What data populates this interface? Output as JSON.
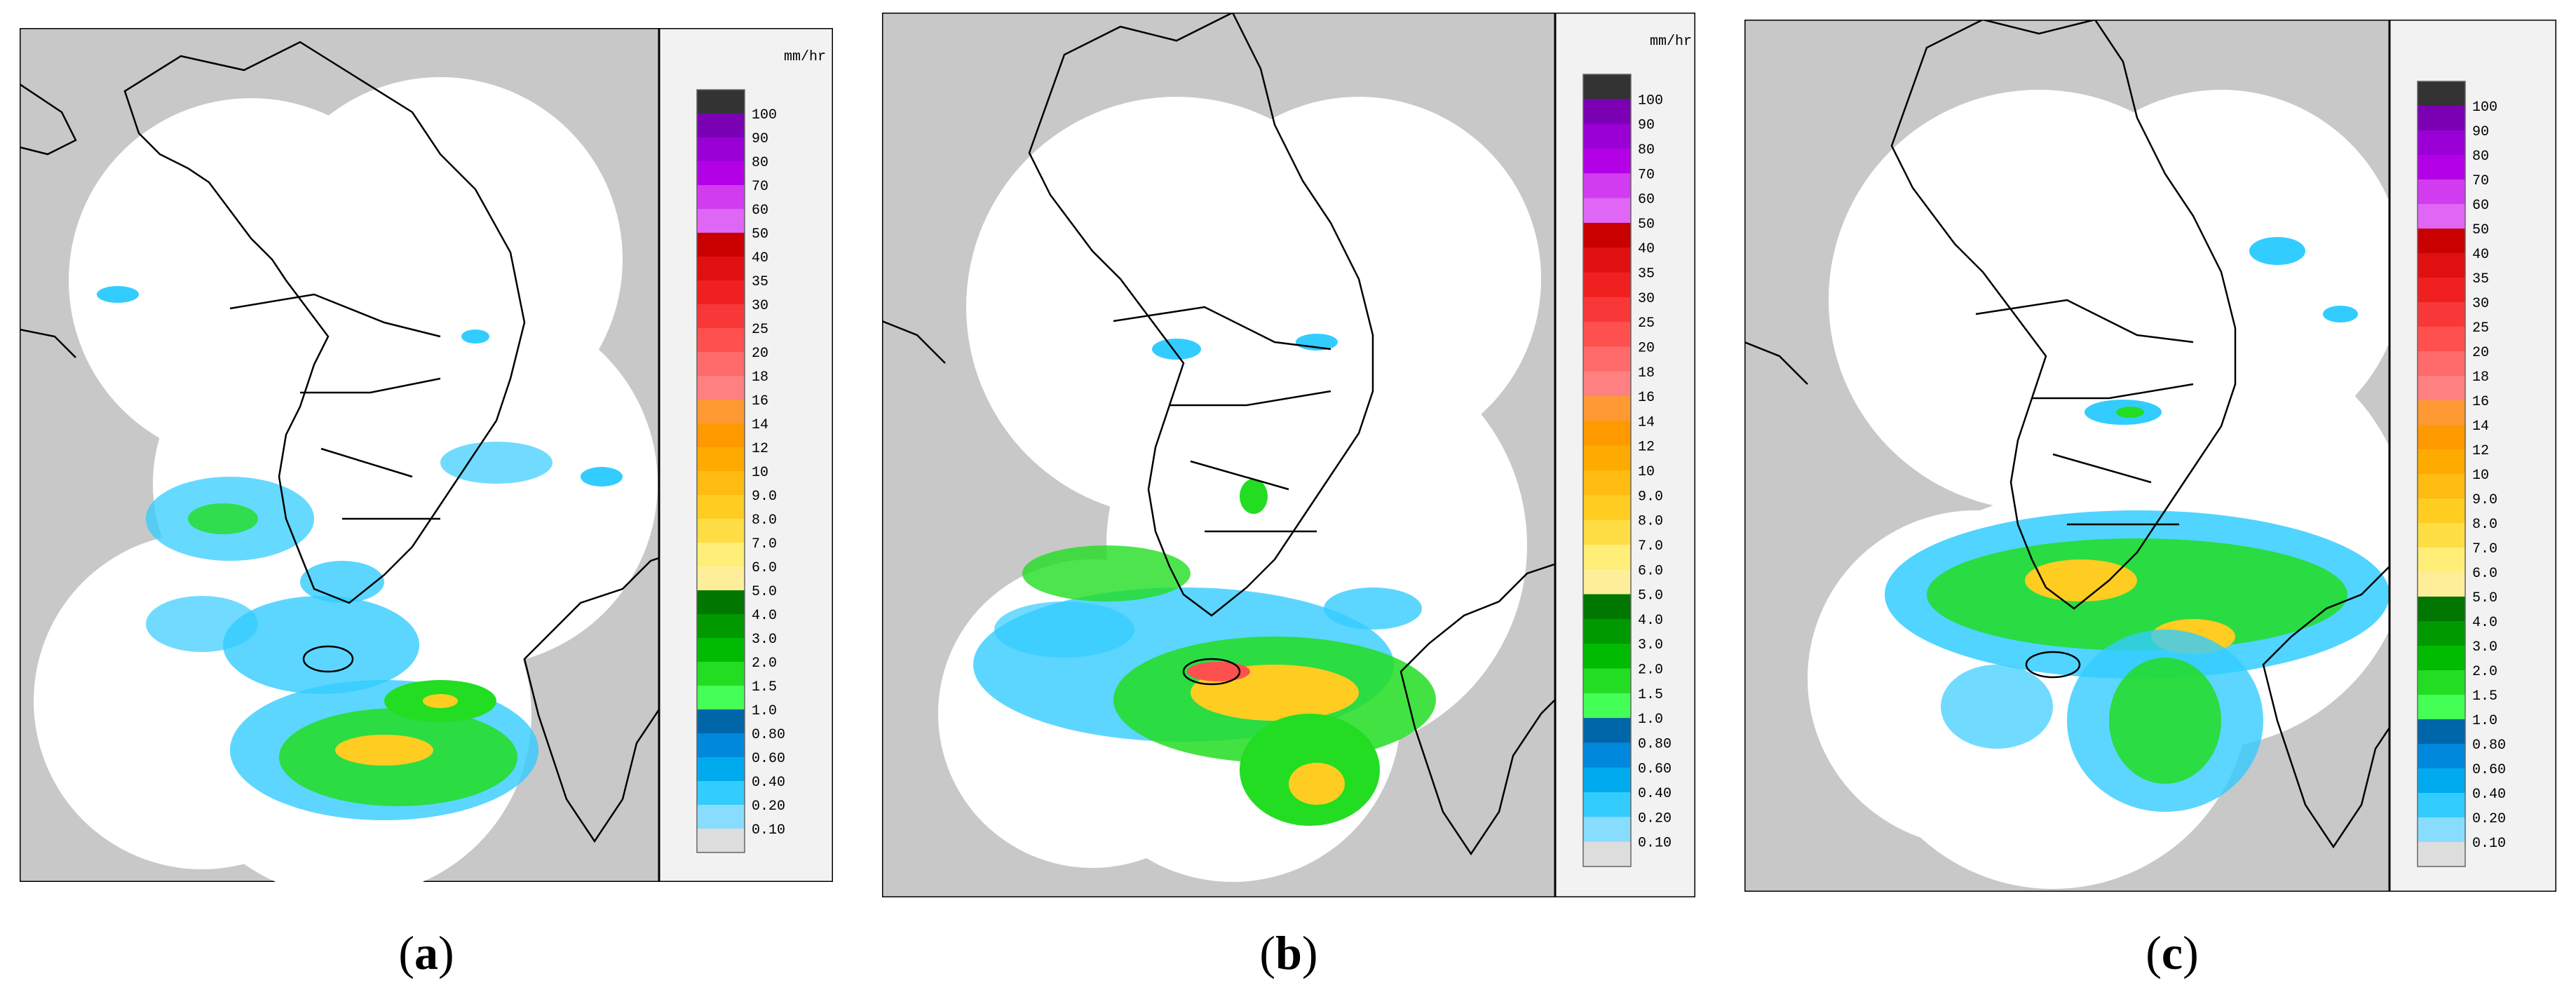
{
  "legend": {
    "unit": "mm/hr",
    "levels": [
      "100",
      "90",
      "80",
      "70",
      "60",
      "50",
      "40",
      "35",
      "30",
      "25",
      "20",
      "18",
      "16",
      "14",
      "12",
      "10",
      "9.0",
      "8.0",
      "7.0",
      "6.0",
      "5.0",
      "4.0",
      "3.0",
      "2.0",
      "1.5",
      "1.0",
      "0.80",
      "0.60",
      "0.40",
      "0.20",
      "0.10"
    ],
    "colors": [
      "#333333",
      "#7b00b4",
      "#9a00d6",
      "#b400e6",
      "#d23cf0",
      "#e066f5",
      "#c80000",
      "#e01010",
      "#f02020",
      "#f83838",
      "#ff5050",
      "#ff6a6a",
      "#ff8080",
      "#ff9933",
      "#ff9900",
      "#ffaa00",
      "#ffbb11",
      "#ffcc22",
      "#ffdd44",
      "#ffee77",
      "#ffee99",
      "#007700",
      "#009900",
      "#00bb00",
      "#22dd22",
      "#44ff55",
      "#0066aa",
      "#0088dd",
      "#00aaee",
      "#33ccff",
      "#88ddff",
      "#dddddd"
    ]
  },
  "colors": {
    "background": "#c8c8c8",
    "radar_coverage": "#ffffff",
    "border_lines": "#000000",
    "legend_background": "#f2f2f2"
  },
  "panels": [
    {
      "id": "a",
      "caption_letter": "a",
      "caption_open": "(",
      "caption_close": ")"
    },
    {
      "id": "b",
      "caption_letter": "b",
      "caption_open": "(",
      "caption_close": ")"
    },
    {
      "id": "c",
      "caption_letter": "c",
      "caption_open": "(",
      "caption_close": ")"
    }
  ]
}
